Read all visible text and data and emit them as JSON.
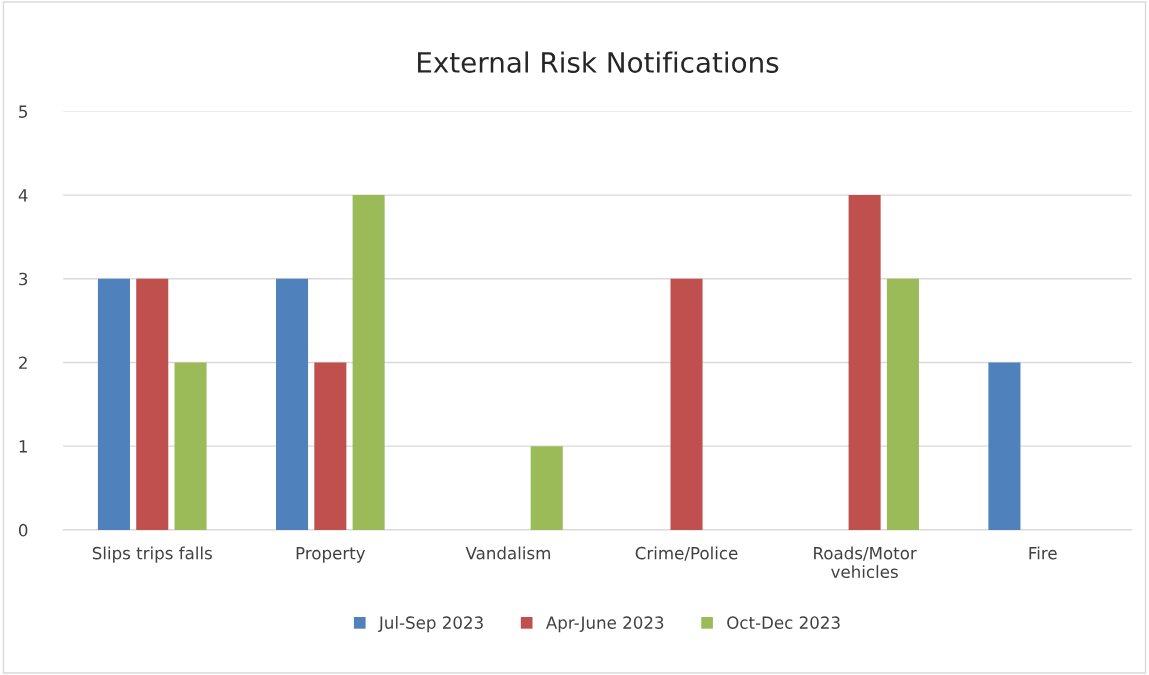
{
  "chart_data": {
    "type": "bar",
    "title": "External Risk Notifications",
    "categories": [
      "Slips trips falls",
      "Property",
      "Vandalism",
      "Crime/Police",
      "Roads/Motor\nvehicles",
      "Fire"
    ],
    "series": [
      {
        "name": "Jul-Sep 2023",
        "color": "#4f81bd",
        "values": [
          3,
          3,
          null,
          null,
          null,
          2
        ]
      },
      {
        "name": "Apr-June 2023",
        "color": "#c0504d",
        "values": [
          3,
          2,
          null,
          3,
          4,
          null
        ]
      },
      {
        "name": "Oct-Dec 2023",
        "color": "#9bbb59",
        "values": [
          2,
          4,
          1,
          null,
          3,
          null
        ]
      }
    ],
    "ylim": [
      0,
      5
    ],
    "yticks": [
      0,
      1,
      2,
      3,
      4,
      5
    ],
    "grid": "y",
    "legend": "bottom"
  }
}
